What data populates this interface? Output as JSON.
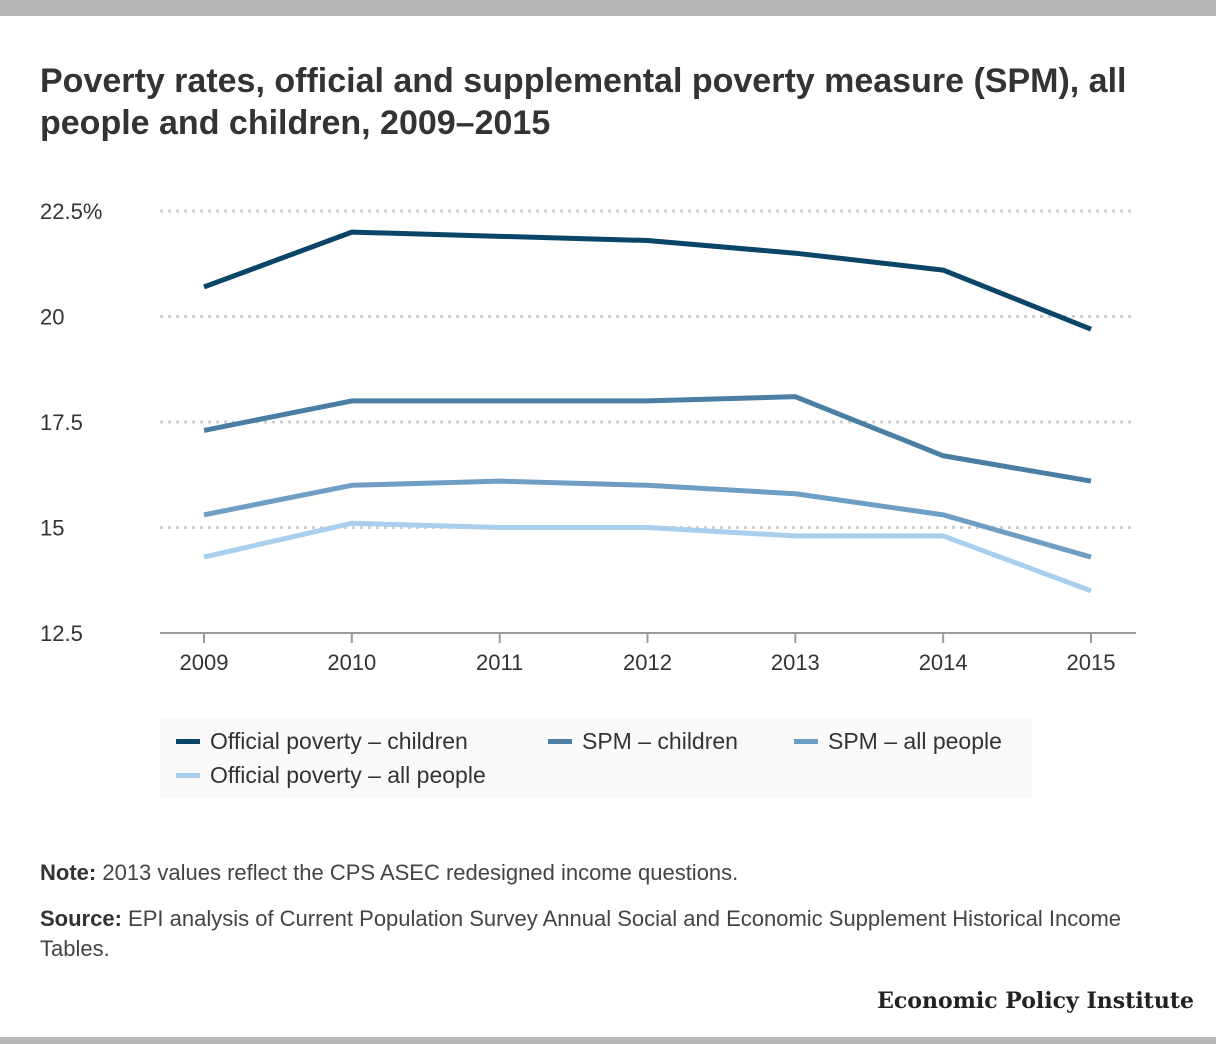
{
  "title": "Poverty rates, official and supplemental poverty measure (SPM), all people and children, 2009–2015",
  "chart_data": {
    "type": "line",
    "x": [
      "2009",
      "2010",
      "2011",
      "2012",
      "2013",
      "2014",
      "2015"
    ],
    "ylim": [
      12.5,
      22.5
    ],
    "yticks": [
      12.5,
      15,
      17.5,
      20,
      22.5
    ],
    "ytick_labels": [
      "12.5",
      "15",
      "17.5",
      "20",
      "22.5%"
    ],
    "grid": "horizontal dotted",
    "legend_position": "bottom",
    "series": [
      {
        "name": "Official poverty – children",
        "color": "#0a4466",
        "values": [
          20.7,
          22.0,
          21.9,
          21.8,
          21.5,
          21.1,
          19.7
        ]
      },
      {
        "name": "SPM – children",
        "color": "#4a7ea3",
        "values": [
          17.3,
          18.0,
          18.0,
          18.0,
          18.1,
          16.7,
          16.1
        ]
      },
      {
        "name": "SPM – all people",
        "color": "#6f9ec4",
        "values": [
          15.3,
          16.0,
          16.1,
          16.0,
          15.8,
          15.3,
          14.3
        ]
      },
      {
        "name": "Official poverty – all people",
        "color": "#a9cfec",
        "values": [
          14.3,
          15.1,
          15.0,
          15.0,
          14.8,
          14.8,
          13.5
        ]
      }
    ]
  },
  "note": {
    "label": "Note:",
    "text": "2013 values reflect the CPS ASEC redesigned income questions."
  },
  "source": {
    "label": "Source:",
    "text": "EPI analysis of Current Population Survey Annual Social and Economic Supplement Historical Income Tables."
  },
  "brand": "Economic Policy Institute"
}
